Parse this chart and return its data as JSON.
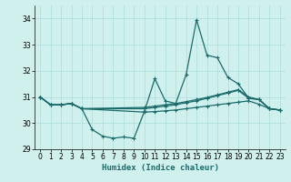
{
  "xlabel": "Humidex (Indice chaleur)",
  "bg_color": "#cff0ec",
  "grid_color": "#aaddda",
  "line_color": "#1a6b6b",
  "xlim": [
    -0.5,
    23.5
  ],
  "ylim": [
    29.0,
    34.5
  ],
  "yticks": [
    29,
    30,
    31,
    32,
    33,
    34
  ],
  "xticks": [
    0,
    1,
    2,
    3,
    4,
    5,
    6,
    7,
    8,
    9,
    10,
    11,
    12,
    13,
    14,
    15,
    16,
    17,
    18,
    19,
    20,
    21,
    22,
    23
  ],
  "series0_x": [
    0,
    1,
    2,
    3,
    4,
    5,
    6,
    7,
    8,
    9,
    10,
    11,
    12,
    13,
    14,
    15,
    16,
    17,
    18,
    19,
    20,
    21,
    22,
    23
  ],
  "series0_y": [
    31.0,
    30.7,
    30.7,
    30.75,
    30.55,
    29.75,
    29.5,
    29.42,
    29.47,
    29.42,
    30.45,
    31.7,
    30.85,
    30.75,
    31.85,
    33.95,
    32.6,
    32.5,
    31.75,
    31.5,
    30.95,
    30.9,
    30.55,
    30.5
  ],
  "series1_x": [
    0,
    1,
    2,
    3,
    4,
    10,
    11,
    12,
    13,
    14,
    15,
    16,
    17,
    18,
    19,
    20,
    21,
    22,
    23
  ],
  "series1_y": [
    31.0,
    30.7,
    30.7,
    30.75,
    30.55,
    30.55,
    30.6,
    30.65,
    30.7,
    30.78,
    30.85,
    30.95,
    31.05,
    31.15,
    31.25,
    30.95,
    30.9,
    30.55,
    30.5
  ],
  "series2_x": [
    0,
    1,
    2,
    3,
    4,
    10,
    11,
    12,
    13,
    14,
    15,
    16,
    17,
    18,
    19,
    20,
    21,
    22,
    23
  ],
  "series2_y": [
    31.0,
    30.7,
    30.7,
    30.75,
    30.55,
    30.6,
    30.65,
    30.7,
    30.75,
    30.82,
    30.9,
    30.98,
    31.08,
    31.18,
    31.28,
    31.0,
    30.9,
    30.55,
    30.5
  ],
  "series3_x": [
    0,
    1,
    2,
    3,
    4,
    10,
    11,
    12,
    13,
    14,
    15,
    16,
    17,
    18,
    19,
    20,
    21,
    22,
    23
  ],
  "series3_y": [
    31.0,
    30.7,
    30.7,
    30.75,
    30.55,
    30.42,
    30.44,
    30.47,
    30.5,
    30.55,
    30.6,
    30.65,
    30.7,
    30.75,
    30.8,
    30.85,
    30.72,
    30.55,
    30.5
  ]
}
